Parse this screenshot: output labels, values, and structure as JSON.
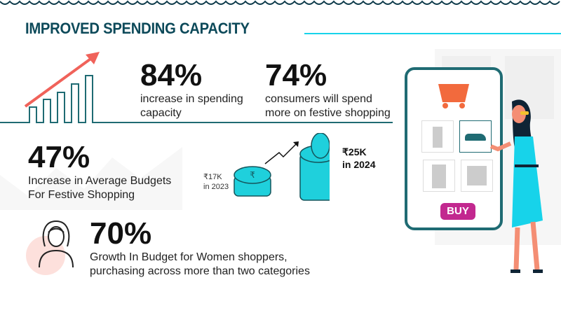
{
  "title": "IMPROVED SPENDING CAPACITY",
  "stats": [
    {
      "value": "84%",
      "label_line1": "increase in spending",
      "label_line2": "capacity"
    },
    {
      "value": "74%",
      "label_line1": "consumers will spend",
      "label_line2": "more on festive shopping"
    },
    {
      "value": "47%",
      "label_line1": "Increase in Average Budgets",
      "label_line2": "For Festive Shopping"
    },
    {
      "value": "70%",
      "label_line1": "Growth In Budget for Women shoppers,",
      "label_line2": "purchasing across more than two categories"
    }
  ],
  "budget": {
    "before_amount": "₹17K",
    "before_year": "in 2023",
    "after_amount": "₹25K",
    "after_year": "in 2024"
  },
  "phone": {
    "buy_label": "BUY"
  },
  "colors": {
    "title": "#0d4a5a",
    "accent": "#17d3ea",
    "arrow": "#f0625a",
    "buy": "#c2288f",
    "cart": "#f26a3d"
  }
}
